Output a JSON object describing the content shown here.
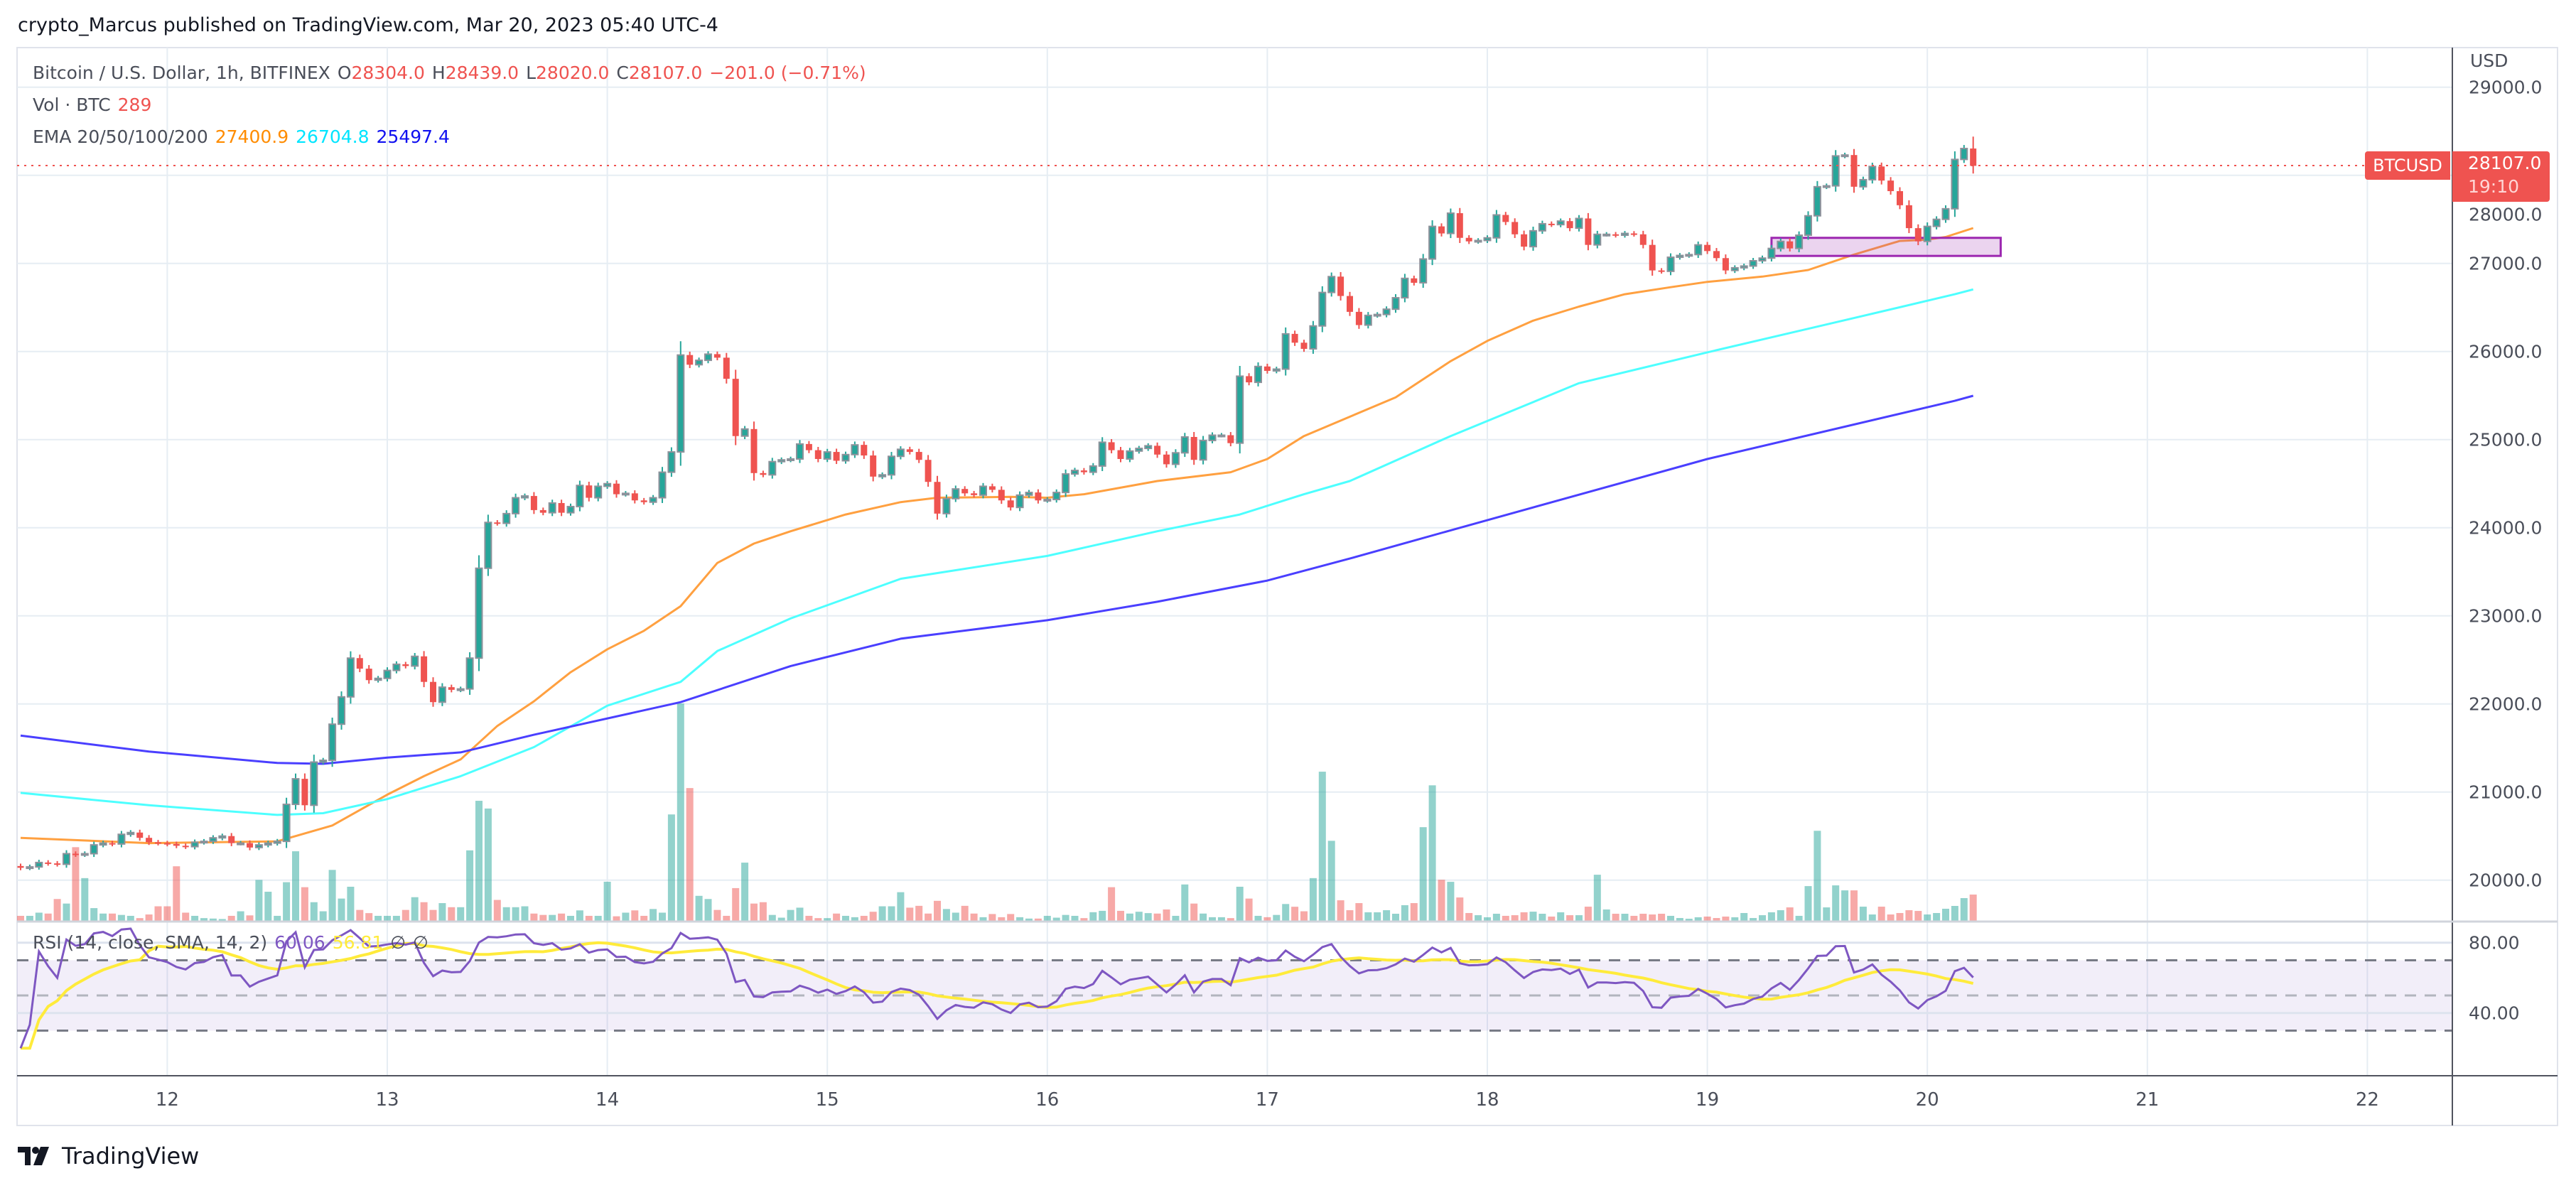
{
  "header": {
    "title": "crypto_Marcus published on TradingView.com, Mar 20, 2023 05:40 UTC-4"
  },
  "legend": {
    "symbol": "Bitcoin / U.S. Dollar, 1h, BITFINEX",
    "o_label": "O",
    "o": "28304.0",
    "h_label": "H",
    "h": "28439.0",
    "l_label": "L",
    "l": "28020.0",
    "c_label": "C",
    "c": "28107.0",
    "change": "−201.0 (−0.71%)",
    "vol_label": "Vol · BTC",
    "vol": "289",
    "ema_label": "EMA 20/50/100/200",
    "ema_a": "27400.9",
    "ema_b": "26704.8",
    "ema_c": "25497.4",
    "rsi_label": "RSI (14, close, SMA, 14, 2)",
    "rsi": "60.06",
    "rsi_sma": "56.81",
    "na1": "∅",
    "na2": "∅"
  },
  "price_axis": {
    "currency": "USD",
    "tag": "BTCUSD",
    "last_price": "28107.0",
    "countdown": "19:10"
  },
  "footer": {
    "brand": "TradingView"
  },
  "colors": {
    "up": "#26a69a",
    "down": "#ef5350",
    "ema_orange": "#ff9800",
    "ema_cyan": "#00ffff",
    "ema_blue": "#3d35ff",
    "rsi": "#7e57c2",
    "rsi_sma": "#ffeb3b",
    "zone": "#9c27b0"
  },
  "chart_data": {
    "type": "candlestick",
    "symbol": "BTCUSD",
    "interval": "1h",
    "start": "2023-03-11 08:00",
    "ylim": [
      19800,
      29200
    ],
    "y_ticks": [
      "20000.0",
      "21000.0",
      "22000.0",
      "23000.0",
      "24000.0",
      "25000.0",
      "26000.0",
      "27000.0",
      "28000.0",
      "29000.0"
    ],
    "x_ticks": [
      "12",
      "13",
      "14",
      "15",
      "16",
      "17",
      "18",
      "19",
      "20",
      "21",
      "22"
    ],
    "grid": true,
    "first_open": 20160,
    "last_candle": {
      "open": 28304.0,
      "high": 28439.0,
      "low": 28020.0,
      "close": 28107.0
    },
    "close": [
      20140,
      20150,
      20200,
      20190,
      20180,
      20300,
      20290,
      20300,
      20400,
      20420,
      20410,
      20520,
      20540,
      20480,
      20430,
      20420,
      20410,
      20390,
      20380,
      20430,
      20440,
      20480,
      20500,
      20420,
      20420,
      20370,
      20400,
      20420,
      20440,
      20860,
      21150,
      20850,
      21340,
      21360,
      21770,
      22080,
      22520,
      22400,
      22270,
      22290,
      22380,
      22450,
      22430,
      22540,
      22250,
      22020,
      22190,
      22160,
      22170,
      22520,
      23540,
      24060,
      24050,
      24160,
      24340,
      24360,
      24200,
      24170,
      24280,
      24170,
      24240,
      24480,
      24340,
      24470,
      24500,
      24380,
      24390,
      24310,
      24290,
      24340,
      24630,
      24860,
      25960,
      25850,
      25900,
      25970,
      25930,
      25690,
      25040,
      25120,
      24620,
      24600,
      24750,
      24770,
      24780,
      24950,
      24880,
      24780,
      24860,
      24760,
      24830,
      24940,
      24820,
      24580,
      24600,
      24810,
      24890,
      24860,
      24770,
      24520,
      24160,
      24330,
      24440,
      24390,
      24370,
      24470,
      24430,
      24310,
      24230,
      24370,
      24400,
      24310,
      24320,
      24400,
      24610,
      24650,
      24630,
      24700,
      24970,
      24880,
      24780,
      24870,
      24900,
      24930,
      24830,
      24720,
      24850,
      25030,
      24770,
      24990,
      25050,
      25050,
      24960,
      25720,
      25650,
      25830,
      25780,
      25800,
      26200,
      26100,
      26030,
      26290,
      26670,
      26850,
      26630,
      26450,
      26300,
      26410,
      26420,
      26480,
      26610,
      26830,
      26780,
      27050,
      27420,
      27340,
      27570,
      27290,
      27250,
      27260,
      27290,
      27550,
      27470,
      27330,
      27190,
      27370,
      27450,
      27440,
      27480,
      27400,
      27510,
      27210,
      27330,
      27330,
      27320,
      27340,
      27330,
      27210,
      26920,
      26910,
      27070,
      27090,
      27100,
      27210,
      27140,
      27060,
      26920,
      26950,
      26970,
      27030,
      27060,
      27170,
      27250,
      27170,
      27320,
      27540,
      27870,
      27880,
      28220,
      28230,
      27870,
      27950,
      28100,
      27940,
      27820,
      27660,
      27400,
      27250,
      27420,
      27500,
      27620,
      28180,
      28304,
      28107
    ],
    "volume": [
      55,
      55,
      90,
      80,
      240,
      190,
      810,
      470,
      140,
      80,
      80,
      65,
      55,
      30,
      70,
      160,
      160,
      600,
      90,
      55,
      30,
      25,
      20,
      55,
      105,
      60,
      450,
      320,
      55,
      425,
      765,
      370,
      205,
      105,
      560,
      245,
      375,
      120,
      85,
      55,
      55,
      55,
      120,
      260,
      205,
      120,
      195,
      150,
      150,
      775,
      1320,
      1235,
      230,
      150,
      150,
      160,
      80,
      65,
      65,
      80,
      55,
      115,
      55,
      55,
      430,
      50,
      90,
      115,
      55,
      130,
      90,
      1170,
      2390,
      1460,
      275,
      240,
      120,
      55,
      360,
      640,
      190,
      205,
      65,
      35,
      120,
      145,
      55,
      30,
      30,
      80,
      55,
      40,
      55,
      100,
      160,
      160,
      315,
      145,
      165,
      80,
      220,
      130,
      90,
      165,
      80,
      40,
      75,
      40,
      75,
      40,
      25,
      25,
      55,
      35,
      65,
      55,
      30,
      95,
      110,
      370,
      110,
      80,
      100,
      85,
      80,
      125,
      55,
      400,
      190,
      80,
      40,
      40,
      30,
      375,
      245,
      55,
      40,
      65,
      185,
      155,
      105,
      470,
      1640,
      880,
      226,
      117,
      195,
      94,
      94,
      117,
      78,
      172,
      195,
      1030,
      1490,
      452,
      429,
      257,
      86,
      62,
      39,
      78,
      55,
      62,
      94,
      101,
      78,
      47,
      94,
      62,
      62,
      156,
      507,
      125,
      78,
      78,
      55,
      78,
      70,
      78,
      55,
      31,
      23,
      39,
      47,
      31,
      47,
      39,
      86,
      31,
      62,
      94,
      117,
      148,
      55,
      382,
      990,
      148,
      390,
      335,
      335,
      156,
      70,
      156,
      70,
      86,
      117,
      109,
      70,
      86,
      133,
      164,
      250,
      289
    ],
    "ema": [
      {
        "value_label": "27400.9",
        "color": "#ffa040",
        "points": [
          [
            "2023-03-11 08:00",
            20480
          ],
          [
            "2023-03-11 22:00",
            20420
          ],
          [
            "2023-03-12 12:00",
            20440
          ],
          [
            "2023-03-12 14:00",
            20500
          ],
          [
            "2023-03-12 18:00",
            20620
          ],
          [
            "2023-03-13 00:00",
            20970
          ],
          [
            "2023-03-13 04:00",
            21180
          ],
          [
            "2023-03-13 08:00",
            21370
          ],
          [
            "2023-03-13 12:00",
            21750
          ],
          [
            "2023-03-13 16:00",
            22030
          ],
          [
            "2023-03-13 20:00",
            22360
          ],
          [
            "2023-03-14 00:00",
            22620
          ],
          [
            "2023-03-14 04:00",
            22830
          ],
          [
            "2023-03-14 08:00",
            23110
          ],
          [
            "2023-03-14 12:00",
            23600
          ],
          [
            "2023-03-14 16:00",
            23820
          ],
          [
            "2023-03-14 20:00",
            23960
          ],
          [
            "2023-03-15 02:00",
            24150
          ],
          [
            "2023-03-15 08:00",
            24290
          ],
          [
            "2023-03-15 12:00",
            24340
          ],
          [
            "2023-03-15 20:00",
            24350
          ],
          [
            "2023-03-16 00:00",
            24340
          ],
          [
            "2023-03-16 04:00",
            24380
          ],
          [
            "2023-03-16 12:00",
            24530
          ],
          [
            "2023-03-16 20:00",
            24630
          ],
          [
            "2023-03-17 00:00",
            24780
          ],
          [
            "2023-03-17 04:00",
            25040
          ],
          [
            "2023-03-17 09:00",
            25260
          ],
          [
            "2023-03-17 14:00",
            25480
          ],
          [
            "2023-03-17 20:00",
            25890
          ],
          [
            "2023-03-18 00:00",
            26120
          ],
          [
            "2023-03-18 05:00",
            26350
          ],
          [
            "2023-03-18 10:00",
            26510
          ],
          [
            "2023-03-18 15:00",
            26650
          ],
          [
            "2023-03-18 20:00",
            26730
          ],
          [
            "2023-03-19 00:00",
            26790
          ],
          [
            "2023-03-19 06:00",
            26850
          ],
          [
            "2023-03-19 11:00",
            26925
          ],
          [
            "2023-03-19 16:00",
            27100
          ],
          [
            "2023-03-19 21:00",
            27255
          ],
          [
            "2023-03-20 00:00",
            27270
          ],
          [
            "2023-03-20 02:00",
            27300
          ],
          [
            "2023-03-20 05:00",
            27400.9
          ]
        ]
      },
      {
        "value_label": "26704.8",
        "color": "#4dffff",
        "points": [
          [
            "2023-03-11 08:00",
            20990
          ],
          [
            "2023-03-11 22:00",
            20850
          ],
          [
            "2023-03-12 12:00",
            20740
          ],
          [
            "2023-03-12 17:00",
            20760
          ],
          [
            "2023-03-13 00:00",
            20920
          ],
          [
            "2023-03-13 08:00",
            21180
          ],
          [
            "2023-03-13 16:00",
            21510
          ],
          [
            "2023-03-14 00:00",
            21980
          ],
          [
            "2023-03-14 08:00",
            22250
          ],
          [
            "2023-03-14 12:00",
            22600
          ],
          [
            "2023-03-14 20:00",
            22970
          ],
          [
            "2023-03-15 08:00",
            23420
          ],
          [
            "2023-03-16 00:00",
            23680
          ],
          [
            "2023-03-16 12:00",
            23960
          ],
          [
            "2023-03-16 21:00",
            24150
          ],
          [
            "2023-03-17 04:00",
            24380
          ],
          [
            "2023-03-17 09:00",
            24530
          ],
          [
            "2023-03-17 20:00",
            25040
          ],
          [
            "2023-03-18 10:00",
            25640
          ],
          [
            "2023-03-19 00:00",
            25990
          ],
          [
            "2023-03-19 16:00",
            26380
          ],
          [
            "2023-03-20 03:00",
            26650
          ],
          [
            "2023-03-20 05:00",
            26704.8
          ]
        ]
      },
      {
        "value_label": "25497.4",
        "color": "#4a3fff",
        "points": [
          [
            "2023-03-11 08:00",
            21640
          ],
          [
            "2023-03-11 22:00",
            21460
          ],
          [
            "2023-03-12 12:00",
            21330
          ],
          [
            "2023-03-12 17:00",
            21320
          ],
          [
            "2023-03-13 00:00",
            21390
          ],
          [
            "2023-03-13 08:00",
            21450
          ],
          [
            "2023-03-13 16:00",
            21650
          ],
          [
            "2023-03-14 08:00",
            22020
          ],
          [
            "2023-03-14 20:00",
            22430
          ],
          [
            "2023-03-15 08:00",
            22740
          ],
          [
            "2023-03-16 00:00",
            22950
          ],
          [
            "2023-03-16 12:00",
            23160
          ],
          [
            "2023-03-17 00:00",
            23400
          ],
          [
            "2023-03-17 09:00",
            23650
          ],
          [
            "2023-03-17 20:00",
            23970
          ],
          [
            "2023-03-19 00:00",
            24780
          ],
          [
            "2023-03-20 03:00",
            25440
          ],
          [
            "2023-03-20 05:00",
            25497.4
          ]
        ]
      }
    ],
    "zone": {
      "from": "2023-03-19 07:00",
      "to": "2023-03-20 08:00",
      "low": 27085,
      "high": 27290
    },
    "rsi": {
      "period": 14,
      "sma": 14,
      "levels": [
        70,
        50,
        30
      ],
      "y_ticks": [
        "80.00",
        "40.00"
      ],
      "ylim": [
        20,
        90
      ]
    }
  }
}
